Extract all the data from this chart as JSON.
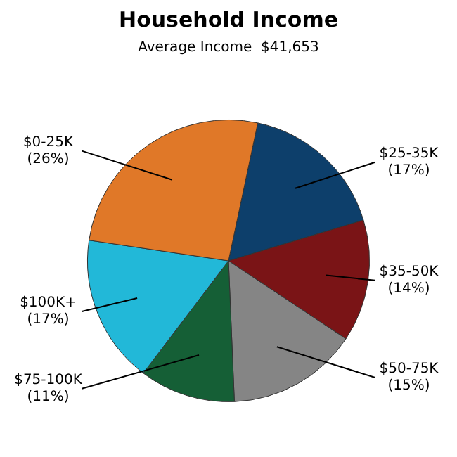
{
  "chart_data": {
    "type": "pie",
    "title": "Household Income",
    "subtitle": "Average Income  $41,653",
    "categories": [
      "$25-35K",
      "$35-50K",
      "$50-75K",
      "$75-100K",
      "$100K+",
      "$0-25K"
    ],
    "values": [
      17,
      14,
      15,
      11,
      17,
      26
    ],
    "value_labels": [
      "(17%)",
      "(14%)",
      "(15%)",
      "(11%)",
      "(17%)",
      "(26%)"
    ],
    "colors": [
      "#0d3f6b",
      "#7a1416",
      "#858585",
      "#155f36",
      "#22b8d8",
      "#e07828"
    ],
    "legend": false
  }
}
